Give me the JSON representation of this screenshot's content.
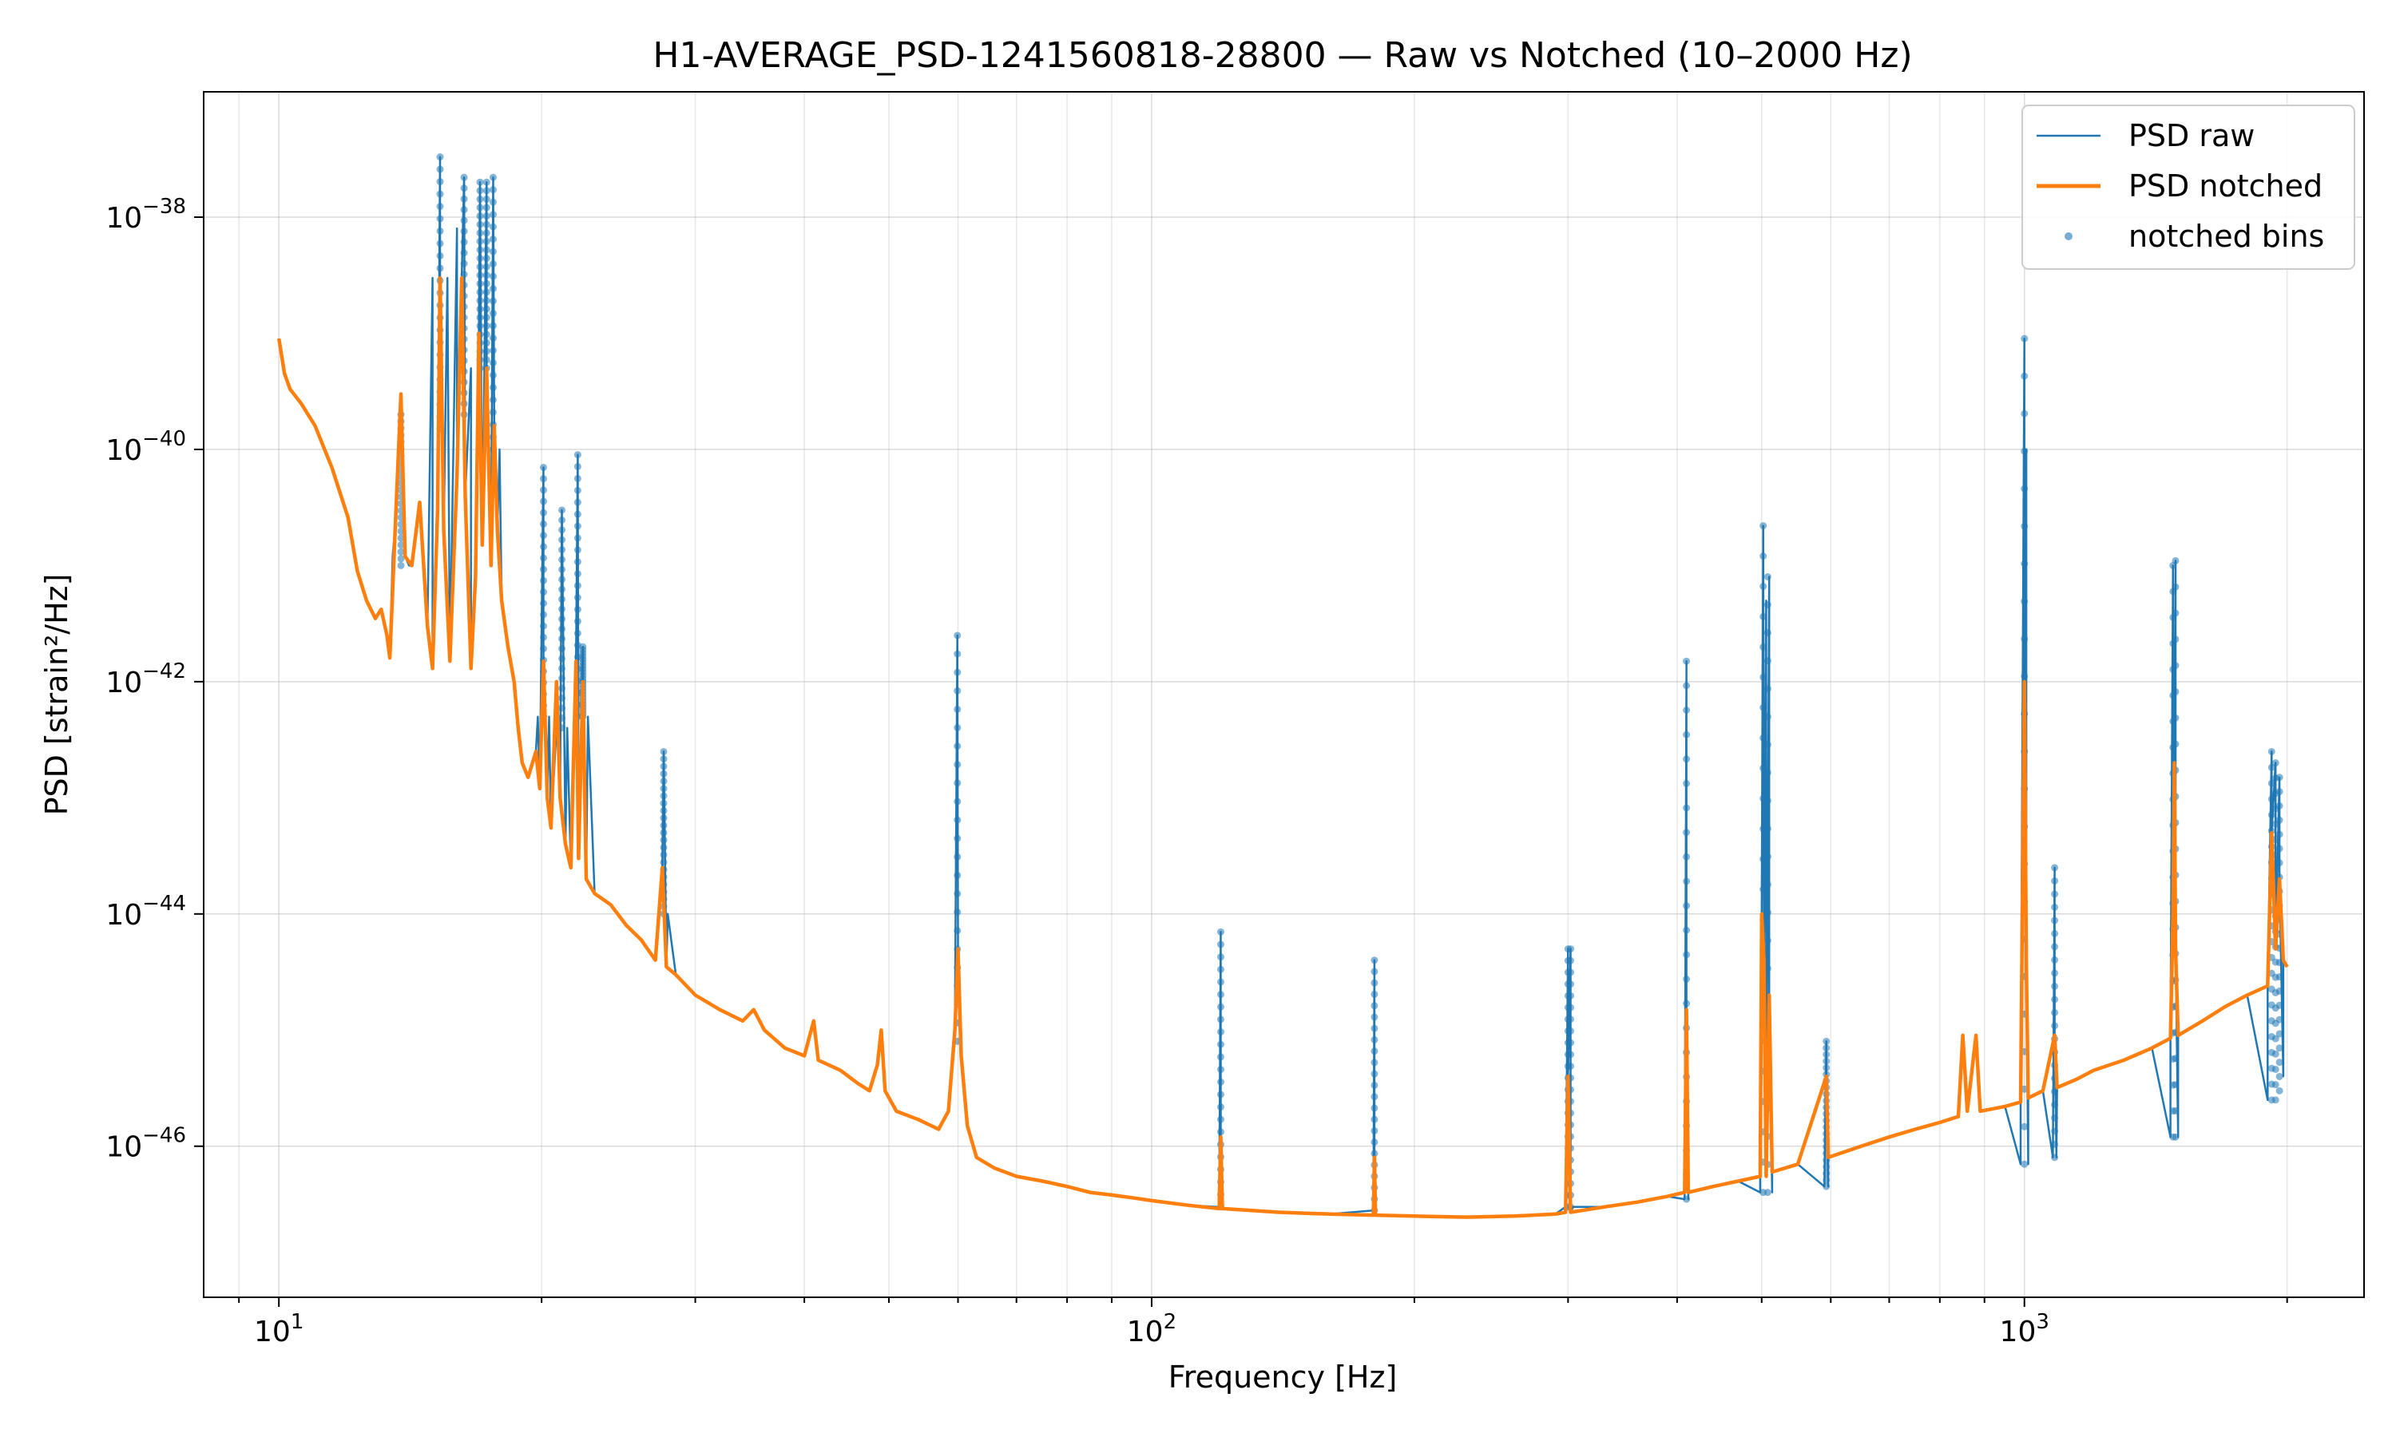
{
  "chart_data": {
    "type": "line",
    "title": "H1-AVERAGE_PSD-1241560818-28800 — Raw vs Notched (10–2000 Hz)",
    "xlabel": "Frequency [Hz]",
    "ylabel": "PSD [strain²/Hz]",
    "x_scale": "log",
    "y_scale": "log",
    "xlim": [
      8.2,
      2450
    ],
    "ylim": [
      5e-48,
      1.2e-37
    ],
    "grid": true,
    "legend_position": "top-right",
    "x_ticks": [
      {
        "value": 10,
        "base": "10",
        "exp": "1"
      },
      {
        "value": 100,
        "base": "10",
        "exp": "2"
      },
      {
        "value": 1000,
        "base": "10",
        "exp": "3"
      }
    ],
    "y_ticks": [
      {
        "value": 1e-38,
        "base": "10",
        "exp": "−38"
      },
      {
        "value": 1e-40,
        "base": "10",
        "exp": "−40"
      },
      {
        "value": 1e-42,
        "base": "10",
        "exp": "−42"
      },
      {
        "value": 1e-44,
        "base": "10",
        "exp": "−44"
      },
      {
        "value": 1e-46,
        "base": "10",
        "exp": "−46"
      }
    ],
    "series": [
      {
        "name": "PSD raw",
        "color": "#1f77b4",
        "style": "line",
        "points": [
          [
            13.5,
            1.2e-41
          ],
          [
            13.8,
            2e-40
          ],
          [
            14.1,
            1e-41
          ],
          [
            15.0,
            3e-39
          ],
          [
            15.3,
            3.3e-38
          ],
          [
            15.6,
            3e-39
          ],
          [
            16.0,
            8e-39
          ],
          [
            16.3,
            2.2e-38
          ],
          [
            16.6,
            5e-40
          ],
          [
            17.0,
            2e-38
          ],
          [
            17.3,
            2e-38
          ],
          [
            17.6,
            2.2e-38
          ],
          [
            17.9,
            1e-40
          ],
          [
            19.8,
            5e-43
          ],
          [
            20.1,
            7e-41
          ],
          [
            20.4,
            5e-43
          ],
          [
            20.8,
            4e-43
          ],
          [
            21.1,
            3e-41
          ],
          [
            21.4,
            4e-43
          ],
          [
            21.8,
            5e-43
          ],
          [
            22.0,
            9e-41
          ],
          [
            22.3,
            2e-42
          ],
          [
            22.6,
            5e-43
          ],
          [
            27.3,
            1e-44
          ],
          [
            27.6,
            2.5e-43
          ],
          [
            27.9,
            1e-44
          ],
          [
            59.5,
            8e-46
          ],
          [
            59.9,
            2.5e-42
          ],
          [
            60.3,
            8e-46
          ],
          [
            119.5,
            3e-47
          ],
          [
            120.0,
            7e-45
          ],
          [
            120.5,
            3e-47
          ],
          [
            179.5,
            2.8e-47
          ],
          [
            180.0,
            4e-45
          ],
          [
            180.5,
            2.8e-47
          ],
          [
            298,
            3e-47
          ],
          [
            300,
            5e-45
          ],
          [
            302,
            5e-45
          ],
          [
            304,
            3e-47
          ],
          [
            408,
            3.5e-47
          ],
          [
            410,
            1.5e-42
          ],
          [
            412,
            3.5e-47
          ],
          [
            498,
            4e-47
          ],
          [
            502,
            2.2e-41
          ],
          [
            506,
            5e-42
          ],
          [
            510,
            8e-42
          ],
          [
            514,
            4e-47
          ],
          [
            590,
            4.5e-47
          ],
          [
            593,
            8e-46
          ],
          [
            596,
            4.5e-47
          ],
          [
            990,
            7e-47
          ],
          [
            1000,
            9e-40
          ],
          [
            1005,
            1e-40
          ],
          [
            1010,
            7e-47
          ],
          [
            1078,
            8e-47
          ],
          [
            1083,
            2.5e-44
          ],
          [
            1088,
            8e-47
          ],
          [
            1470,
            1.2e-46
          ],
          [
            1480,
            1e-41
          ],
          [
            1490,
            1.1e-41
          ],
          [
            1500,
            1.2e-46
          ],
          [
            1900,
            2.5e-46
          ],
          [
            1920,
            2.5e-43
          ],
          [
            1940,
            2e-43
          ],
          [
            1960,
            1.5e-43
          ],
          [
            1980,
            4e-46
          ]
        ]
      },
      {
        "name": "PSD notched",
        "color": "#ff7f0e",
        "style": "line",
        "points": [
          [
            10.0,
            9e-40
          ],
          [
            10.15,
            4.5e-40
          ],
          [
            10.3,
            3.3e-40
          ],
          [
            10.6,
            2.5e-40
          ],
          [
            11.0,
            1.6e-40
          ],
          [
            11.5,
            7e-41
          ],
          [
            12.0,
            2.6e-41
          ],
          [
            12.3,
            9e-42
          ],
          [
            12.6,
            5e-42
          ],
          [
            12.9,
            3.5e-42
          ],
          [
            13.1,
            4.2e-42
          ],
          [
            13.3,
            2.5e-42
          ],
          [
            13.4,
            1.6e-42
          ],
          [
            13.6,
            2.3e-41
          ],
          [
            13.8,
            3e-40
          ],
          [
            13.95,
            1.2e-41
          ],
          [
            14.2,
            1e-41
          ],
          [
            14.5,
            3.5e-41
          ],
          [
            14.8,
            3e-42
          ],
          [
            15.0,
            1.3e-42
          ],
          [
            15.2,
            3e-41
          ],
          [
            15.3,
            3e-39
          ],
          [
            15.45,
            2e-41
          ],
          [
            15.7,
            1.5e-42
          ],
          [
            16.0,
            6e-41
          ],
          [
            16.2,
            3e-39
          ],
          [
            16.35,
            4e-41
          ],
          [
            16.6,
            1.3e-42
          ],
          [
            16.8,
            8e-42
          ],
          [
            16.95,
            1e-39
          ],
          [
            17.1,
            1.5e-41
          ],
          [
            17.3,
            5e-40
          ],
          [
            17.5,
            1e-41
          ],
          [
            17.65,
            1.6e-40
          ],
          [
            17.8,
            2e-41
          ],
          [
            18.0,
            5e-42
          ],
          [
            18.3,
            2e-42
          ],
          [
            18.6,
            1e-42
          ],
          [
            18.8,
            4e-43
          ],
          [
            19.0,
            2e-43
          ],
          [
            19.3,
            1.5e-43
          ],
          [
            19.7,
            2.5e-43
          ],
          [
            19.9,
            1.2e-43
          ],
          [
            20.1,
            1.5e-42
          ],
          [
            20.3,
            1e-43
          ],
          [
            20.5,
            5.5e-44
          ],
          [
            20.8,
            1e-42
          ],
          [
            21.0,
            1e-43
          ],
          [
            21.3,
            4e-44
          ],
          [
            21.6,
            2.5e-44
          ],
          [
            21.9,
            1.5e-42
          ],
          [
            22.05,
            3e-44
          ],
          [
            22.3,
            1e-42
          ],
          [
            22.5,
            2e-44
          ],
          [
            23.0,
            1.5e-44
          ],
          [
            24.0,
            1.2e-44
          ],
          [
            25.0,
            8e-45
          ],
          [
            26.0,
            6e-45
          ],
          [
            27.0,
            4e-45
          ],
          [
            27.5,
            2.5e-44
          ],
          [
            27.8,
            3.5e-45
          ],
          [
            28.5,
            3e-45
          ],
          [
            30.0,
            2e-45
          ],
          [
            32.0,
            1.5e-45
          ],
          [
            34.0,
            1.2e-45
          ],
          [
            35.0,
            1.5e-45
          ],
          [
            36.0,
            1e-45
          ],
          [
            38.0,
            7e-46
          ],
          [
            40.0,
            6e-46
          ],
          [
            41.0,
            1.2e-45
          ],
          [
            41.5,
            5.5e-46
          ],
          [
            44.0,
            4.5e-46
          ],
          [
            46.0,
            3.5e-46
          ],
          [
            47.5,
            3e-46
          ],
          [
            48.5,
            5e-46
          ],
          [
            49.0,
            1e-45
          ],
          [
            49.5,
            3e-46
          ],
          [
            51.0,
            2e-46
          ],
          [
            54.0,
            1.7e-46
          ],
          [
            57.0,
            1.4e-46
          ],
          [
            58.5,
            2e-46
          ],
          [
            59.5,
            1e-45
          ],
          [
            60.0,
            5e-45
          ],
          [
            60.5,
            6e-46
          ],
          [
            61.5,
            1.5e-46
          ],
          [
            63.0,
            8e-47
          ],
          [
            66.0,
            6.5e-47
          ],
          [
            70.0,
            5.5e-47
          ],
          [
            75.0,
            5e-47
          ],
          [
            80.0,
            4.5e-47
          ],
          [
            85.0,
            4e-47
          ],
          [
            90.0,
            3.8e-47
          ],
          [
            95.0,
            3.6e-47
          ],
          [
            100.0,
            3.4e-47
          ],
          [
            110.0,
            3.1e-47
          ],
          [
            119.5,
            2.9e-47
          ],
          [
            120.0,
            1.2e-46
          ],
          [
            120.5,
            2.9e-47
          ],
          [
            140.0,
            2.7e-47
          ],
          [
            160.0,
            2.6e-47
          ],
          [
            179.5,
            2.55e-47
          ],
          [
            180.0,
            8e-47
          ],
          [
            180.5,
            2.55e-47
          ],
          [
            200.0,
            2.5e-47
          ],
          [
            230.0,
            2.45e-47
          ],
          [
            260.0,
            2.5e-47
          ],
          [
            290.0,
            2.6e-47
          ],
          [
            298.0,
            2.7e-47
          ],
          [
            300.0,
            4e-46
          ],
          [
            302.0,
            2.7e-47
          ],
          [
            330.0,
            3e-47
          ],
          [
            360.0,
            3.3e-47
          ],
          [
            390.0,
            3.7e-47
          ],
          [
            408.0,
            4e-47
          ],
          [
            410.0,
            1.5e-45
          ],
          [
            412.0,
            4e-47
          ],
          [
            440.0,
            4.5e-47
          ],
          [
            470.0,
            5e-47
          ],
          [
            498.0,
            5.5e-47
          ],
          [
            500.0,
            1e-44
          ],
          [
            503.0,
            4e-45
          ],
          [
            506.0,
            5.5e-47
          ],
          [
            510.0,
            2e-45
          ],
          [
            514.0,
            6e-47
          ],
          [
            550.0,
            7e-47
          ],
          [
            593.0,
            4e-46
          ],
          [
            596.0,
            8e-47
          ],
          [
            650.0,
            1e-46
          ],
          [
            700.0,
            1.2e-46
          ],
          [
            750.0,
            1.4e-46
          ],
          [
            800.0,
            1.6e-46
          ],
          [
            840.0,
            1.8e-46
          ],
          [
            850.0,
            9e-46
          ],
          [
            860.0,
            2e-46
          ],
          [
            880.0,
            9e-46
          ],
          [
            890.0,
            2e-46
          ],
          [
            950.0,
            2.2e-46
          ],
          [
            990.0,
            2.4e-46
          ],
          [
            1000.0,
            1e-42
          ],
          [
            1005.0,
            4e-45
          ],
          [
            1010.0,
            2.6e-46
          ],
          [
            1050.0,
            3e-46
          ],
          [
            1083.0,
            9e-46
          ],
          [
            1090.0,
            3.2e-46
          ],
          [
            1150.0,
            3.8e-46
          ],
          [
            1200.0,
            4.5e-46
          ],
          [
            1300.0,
            5.5e-46
          ],
          [
            1400.0,
            7e-46
          ],
          [
            1470.0,
            8.5e-46
          ],
          [
            1480.0,
            1e-44
          ],
          [
            1485.0,
            2e-43
          ],
          [
            1490.0,
            5e-45
          ],
          [
            1500.0,
            9e-46
          ],
          [
            1600.0,
            1.2e-45
          ],
          [
            1700.0,
            1.6e-45
          ],
          [
            1800.0,
            2e-45
          ],
          [
            1900.0,
            2.4e-45
          ],
          [
            1920.0,
            5e-44
          ],
          [
            1940.0,
            5e-45
          ],
          [
            1960.0,
            2e-44
          ],
          [
            1980.0,
            4e-45
          ],
          [
            2000.0,
            3.5e-45
          ]
        ]
      },
      {
        "name": "notched bins",
        "color": "#1f77b4",
        "style": "scatter",
        "clusters": [
          [
            13.8,
            1e-41,
            2e-40
          ],
          [
            15.3,
            1.5e-40,
            3.3e-38
          ],
          [
            16.3,
            2e-40,
            2.2e-38
          ],
          [
            17.0,
            5e-40,
            2e-38
          ],
          [
            17.3,
            5e-40,
            2e-38
          ],
          [
            17.6,
            1e-40,
            2.2e-38
          ],
          [
            20.1,
            5e-43,
            7e-41
          ],
          [
            21.1,
            4e-43,
            3e-41
          ],
          [
            22.0,
            5e-43,
            9e-41
          ],
          [
            22.3,
            5e-43,
            2e-42
          ],
          [
            27.6,
            1e-44,
            2.5e-43
          ],
          [
            59.9,
            8e-46,
            2.5e-42
          ],
          [
            120.0,
            3e-47,
            7e-45
          ],
          [
            180.0,
            2.8e-47,
            4e-45
          ],
          [
            300.0,
            3e-47,
            5e-45
          ],
          [
            302.0,
            3e-47,
            5e-45
          ],
          [
            410.0,
            3.5e-47,
            1.5e-42
          ],
          [
            502.0,
            4e-47,
            2.2e-41
          ],
          [
            508.0,
            4e-47,
            8e-42
          ],
          [
            593.0,
            4.5e-47,
            8e-46
          ],
          [
            1000.0,
            7e-47,
            9e-40
          ],
          [
            1083.0,
            8e-47,
            2.5e-44
          ],
          [
            1480.0,
            1.2e-46,
            1e-41
          ],
          [
            1490.0,
            1.2e-46,
            1.1e-41
          ],
          [
            1920.0,
            2.5e-46,
            2.5e-43
          ],
          [
            1940.0,
            2.5e-46,
            2e-43
          ],
          [
            1960.0,
            3e-46,
            1.5e-43
          ]
        ]
      }
    ]
  }
}
